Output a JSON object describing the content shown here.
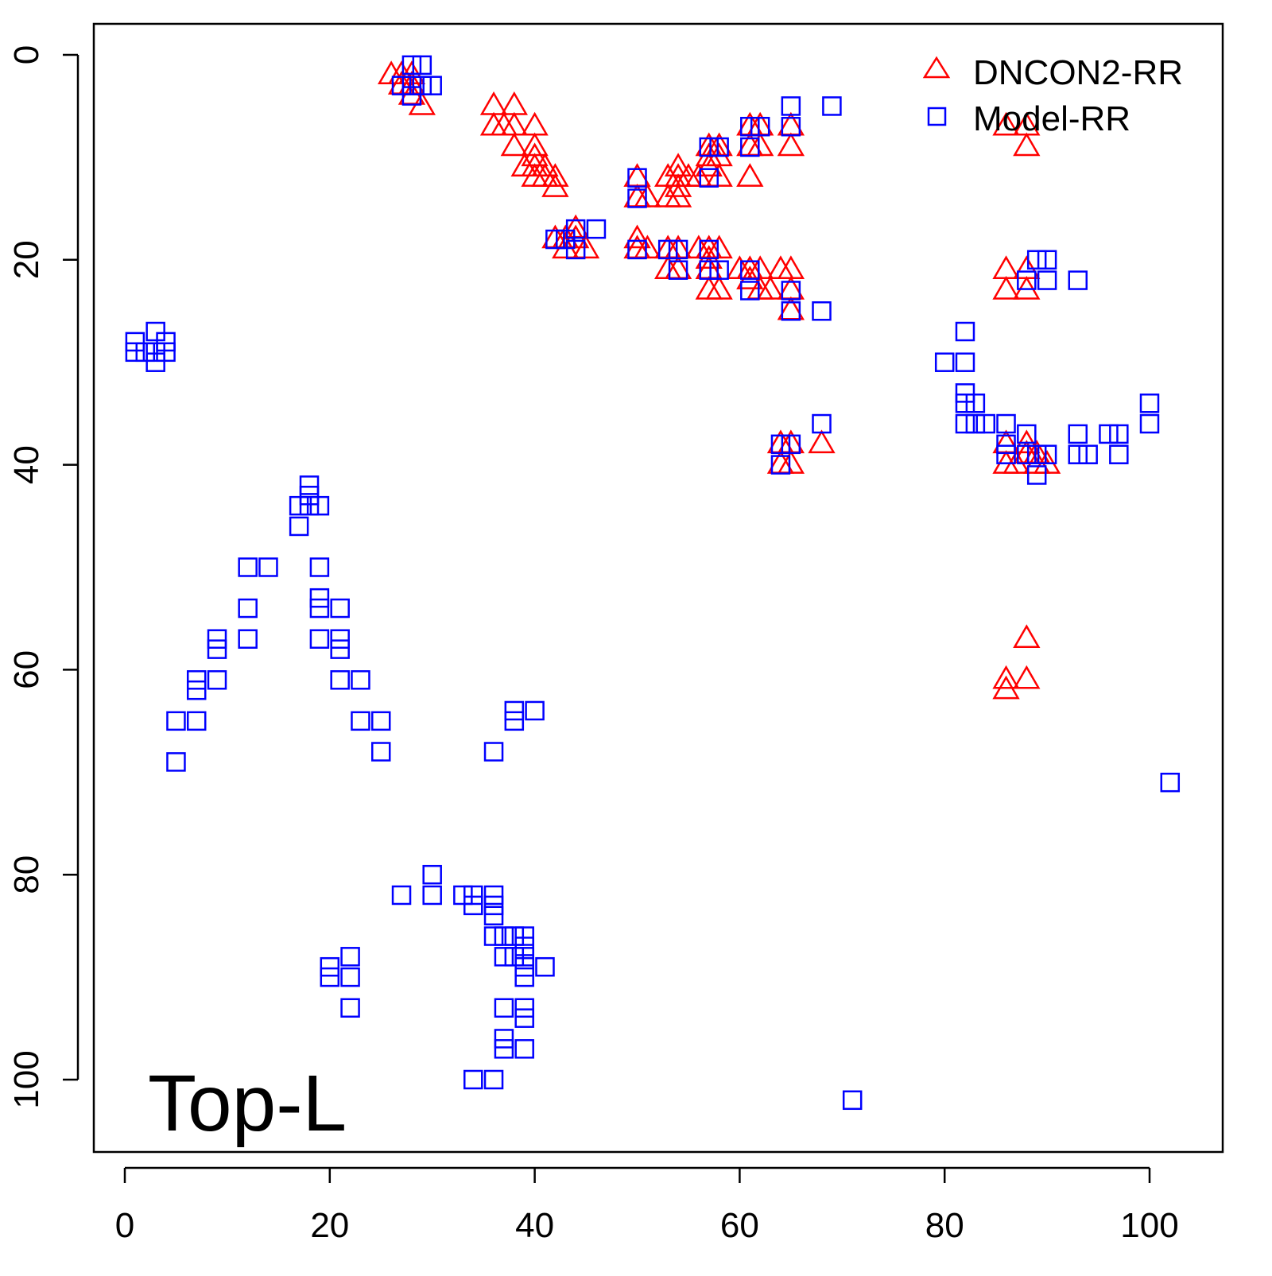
{
  "chart_data": {
    "type": "scatter",
    "title": "",
    "xlabel": "",
    "ylabel": "",
    "annotation": "Top-L",
    "xlim": [
      -3,
      107
    ],
    "ylim": [
      107,
      -3
    ],
    "y_reversed": true,
    "grid": false,
    "legend_position": "top-right",
    "x_ticks": [
      "0",
      "20",
      "40",
      "60",
      "80",
      "100"
    ],
    "y_ticks": [
      "0",
      "20",
      "40",
      "60",
      "80",
      "100"
    ],
    "series": [
      {
        "name": "DNCON2-RR",
        "marker": "triangle-open",
        "color": "#ff0000",
        "points": [
          [
            26,
            2
          ],
          [
            27,
            2
          ],
          [
            28,
            2
          ],
          [
            27,
            3
          ],
          [
            28,
            3
          ],
          [
            28,
            4
          ],
          [
            29,
            5
          ],
          [
            36,
            5
          ],
          [
            38,
            5
          ],
          [
            36,
            7
          ],
          [
            37,
            7
          ],
          [
            38,
            7
          ],
          [
            40,
            7
          ],
          [
            38,
            9
          ],
          [
            40,
            9
          ],
          [
            40,
            10
          ],
          [
            39,
            11
          ],
          [
            40,
            11
          ],
          [
            41,
            11
          ],
          [
            40,
            12
          ],
          [
            41,
            12
          ],
          [
            42,
            12
          ],
          [
            42,
            13
          ],
          [
            50,
            12
          ],
          [
            50,
            14
          ],
          [
            51,
            14
          ],
          [
            53,
            12
          ],
          [
            54,
            11
          ],
          [
            54,
            12
          ],
          [
            55,
            12
          ],
          [
            54,
            13
          ],
          [
            53,
            14
          ],
          [
            54,
            14
          ],
          [
            57,
            9
          ],
          [
            58,
            9
          ],
          [
            57,
            10
          ],
          [
            58,
            10
          ],
          [
            57,
            11
          ],
          [
            58,
            12
          ],
          [
            56,
            12
          ],
          [
            61,
            7
          ],
          [
            62,
            7
          ],
          [
            65,
            7
          ],
          [
            61,
            9
          ],
          [
            62,
            9
          ],
          [
            65,
            9
          ],
          [
            61,
            12
          ],
          [
            43,
            18
          ],
          [
            44,
            17
          ],
          [
            44,
            18
          ],
          [
            42,
            18
          ],
          [
            43,
            19
          ],
          [
            45,
            19
          ],
          [
            50,
            18
          ],
          [
            50,
            19
          ],
          [
            51,
            19
          ],
          [
            53,
            19
          ],
          [
            54,
            19
          ],
          [
            53,
            21
          ],
          [
            54,
            21
          ],
          [
            56,
            19
          ],
          [
            57,
            19
          ],
          [
            57,
            20
          ],
          [
            58,
            19
          ],
          [
            57,
            21
          ],
          [
            57,
            23
          ],
          [
            58,
            23
          ],
          [
            60,
            21
          ],
          [
            61,
            21
          ],
          [
            62,
            21
          ],
          [
            61,
            22
          ],
          [
            62,
            23
          ],
          [
            63,
            23
          ],
          [
            64,
            21
          ],
          [
            65,
            21
          ],
          [
            65,
            23
          ],
          [
            65,
            25
          ],
          [
            64,
            38
          ],
          [
            65,
            38
          ],
          [
            64,
            40
          ],
          [
            65,
            40
          ],
          [
            68,
            38
          ],
          [
            86,
            7
          ],
          [
            88,
            7
          ],
          [
            88,
            9
          ],
          [
            86,
            21
          ],
          [
            88,
            21
          ],
          [
            86,
            23
          ],
          [
            88,
            23
          ],
          [
            86,
            38
          ],
          [
            88,
            38
          ],
          [
            86,
            40
          ],
          [
            87,
            40
          ],
          [
            88,
            39
          ],
          [
            89,
            39
          ],
          [
            89,
            40
          ],
          [
            90,
            40
          ],
          [
            88,
            57
          ],
          [
            86,
            61
          ],
          [
            88,
            61
          ],
          [
            86,
            62
          ]
        ]
      },
      {
        "name": "Model-RR",
        "marker": "square-open",
        "color": "#0000ff",
        "points": [
          [
            28,
            1
          ],
          [
            29,
            1
          ],
          [
            27,
            3
          ],
          [
            28,
            3
          ],
          [
            30,
            3
          ],
          [
            28,
            4
          ],
          [
            29,
            3
          ],
          [
            65,
            5
          ],
          [
            69,
            5
          ],
          [
            61,
            7
          ],
          [
            62,
            7
          ],
          [
            65,
            7
          ],
          [
            61,
            9
          ],
          [
            57,
            9
          ],
          [
            58,
            9
          ],
          [
            57,
            12
          ],
          [
            50,
            12
          ],
          [
            50,
            14
          ],
          [
            42,
            18
          ],
          [
            44,
            17
          ],
          [
            46,
            17
          ],
          [
            44,
            19
          ],
          [
            43,
            18
          ],
          [
            50,
            19
          ],
          [
            53,
            19
          ],
          [
            54,
            19
          ],
          [
            54,
            21
          ],
          [
            57,
            19
          ],
          [
            57,
            21
          ],
          [
            58,
            21
          ],
          [
            61,
            21
          ],
          [
            61,
            23
          ],
          [
            65,
            23
          ],
          [
            65,
            25
          ],
          [
            68,
            25
          ],
          [
            89,
            20
          ],
          [
            90,
            20
          ],
          [
            88,
            22
          ],
          [
            90,
            22
          ],
          [
            93,
            22
          ],
          [
            82,
            27
          ],
          [
            80,
            30
          ],
          [
            82,
            30
          ],
          [
            82,
            33
          ],
          [
            82,
            34
          ],
          [
            83,
            34
          ],
          [
            82,
            36
          ],
          [
            83,
            36
          ],
          [
            84,
            36
          ],
          [
            68,
            36
          ],
          [
            64,
            38
          ],
          [
            65,
            38
          ],
          [
            64,
            40
          ],
          [
            86,
            36
          ],
          [
            86,
            38
          ],
          [
            88,
            37
          ],
          [
            86,
            39
          ],
          [
            88,
            39
          ],
          [
            89,
            39
          ],
          [
            90,
            39
          ],
          [
            89,
            41
          ],
          [
            93,
            37
          ],
          [
            93,
            39
          ],
          [
            94,
            39
          ],
          [
            96,
            37
          ],
          [
            97,
            37
          ],
          [
            97,
            39
          ],
          [
            100,
            34
          ],
          [
            100,
            36
          ],
          [
            1,
            28
          ],
          [
            3,
            27
          ],
          [
            4,
            28
          ],
          [
            2,
            29
          ],
          [
            3,
            29
          ],
          [
            4,
            29
          ],
          [
            3,
            30
          ],
          [
            1,
            29
          ],
          [
            18,
            42
          ],
          [
            18,
            43
          ],
          [
            17,
            44
          ],
          [
            19,
            44
          ],
          [
            18,
            44
          ],
          [
            17,
            46
          ],
          [
            12,
            50
          ],
          [
            14,
            50
          ],
          [
            19,
            50
          ],
          [
            19,
            53
          ],
          [
            19,
            54
          ],
          [
            21,
            54
          ],
          [
            12,
            54
          ],
          [
            12,
            57
          ],
          [
            19,
            57
          ],
          [
            21,
            57
          ],
          [
            21,
            58
          ],
          [
            9,
            57
          ],
          [
            9,
            58
          ],
          [
            9,
            61
          ],
          [
            7,
            61
          ],
          [
            7,
            62
          ],
          [
            21,
            61
          ],
          [
            23,
            61
          ],
          [
            5,
            65
          ],
          [
            7,
            65
          ],
          [
            23,
            65
          ],
          [
            25,
            65
          ],
          [
            25,
            68
          ],
          [
            5,
            69
          ],
          [
            38,
            64
          ],
          [
            40,
            64
          ],
          [
            38,
            65
          ],
          [
            36,
            68
          ],
          [
            102,
            71
          ],
          [
            30,
            80
          ],
          [
            27,
            82
          ],
          [
            30,
            82
          ],
          [
            33,
            82
          ],
          [
            34,
            82
          ],
          [
            36,
            82
          ],
          [
            34,
            83
          ],
          [
            36,
            83
          ],
          [
            36,
            84
          ],
          [
            36,
            86
          ],
          [
            37,
            86
          ],
          [
            38,
            86
          ],
          [
            39,
            86
          ],
          [
            39,
            87
          ],
          [
            37,
            88
          ],
          [
            38,
            88
          ],
          [
            39,
            88
          ],
          [
            39,
            89
          ],
          [
            41,
            89
          ],
          [
            39,
            90
          ],
          [
            20,
            89
          ],
          [
            20,
            90
          ],
          [
            22,
            88
          ],
          [
            22,
            90
          ],
          [
            22,
            93
          ],
          [
            37,
            93
          ],
          [
            39,
            93
          ],
          [
            39,
            94
          ],
          [
            37,
            96
          ],
          [
            37,
            97
          ],
          [
            39,
            97
          ],
          [
            34,
            100
          ],
          [
            36,
            100
          ],
          [
            71,
            102
          ]
        ]
      }
    ]
  }
}
